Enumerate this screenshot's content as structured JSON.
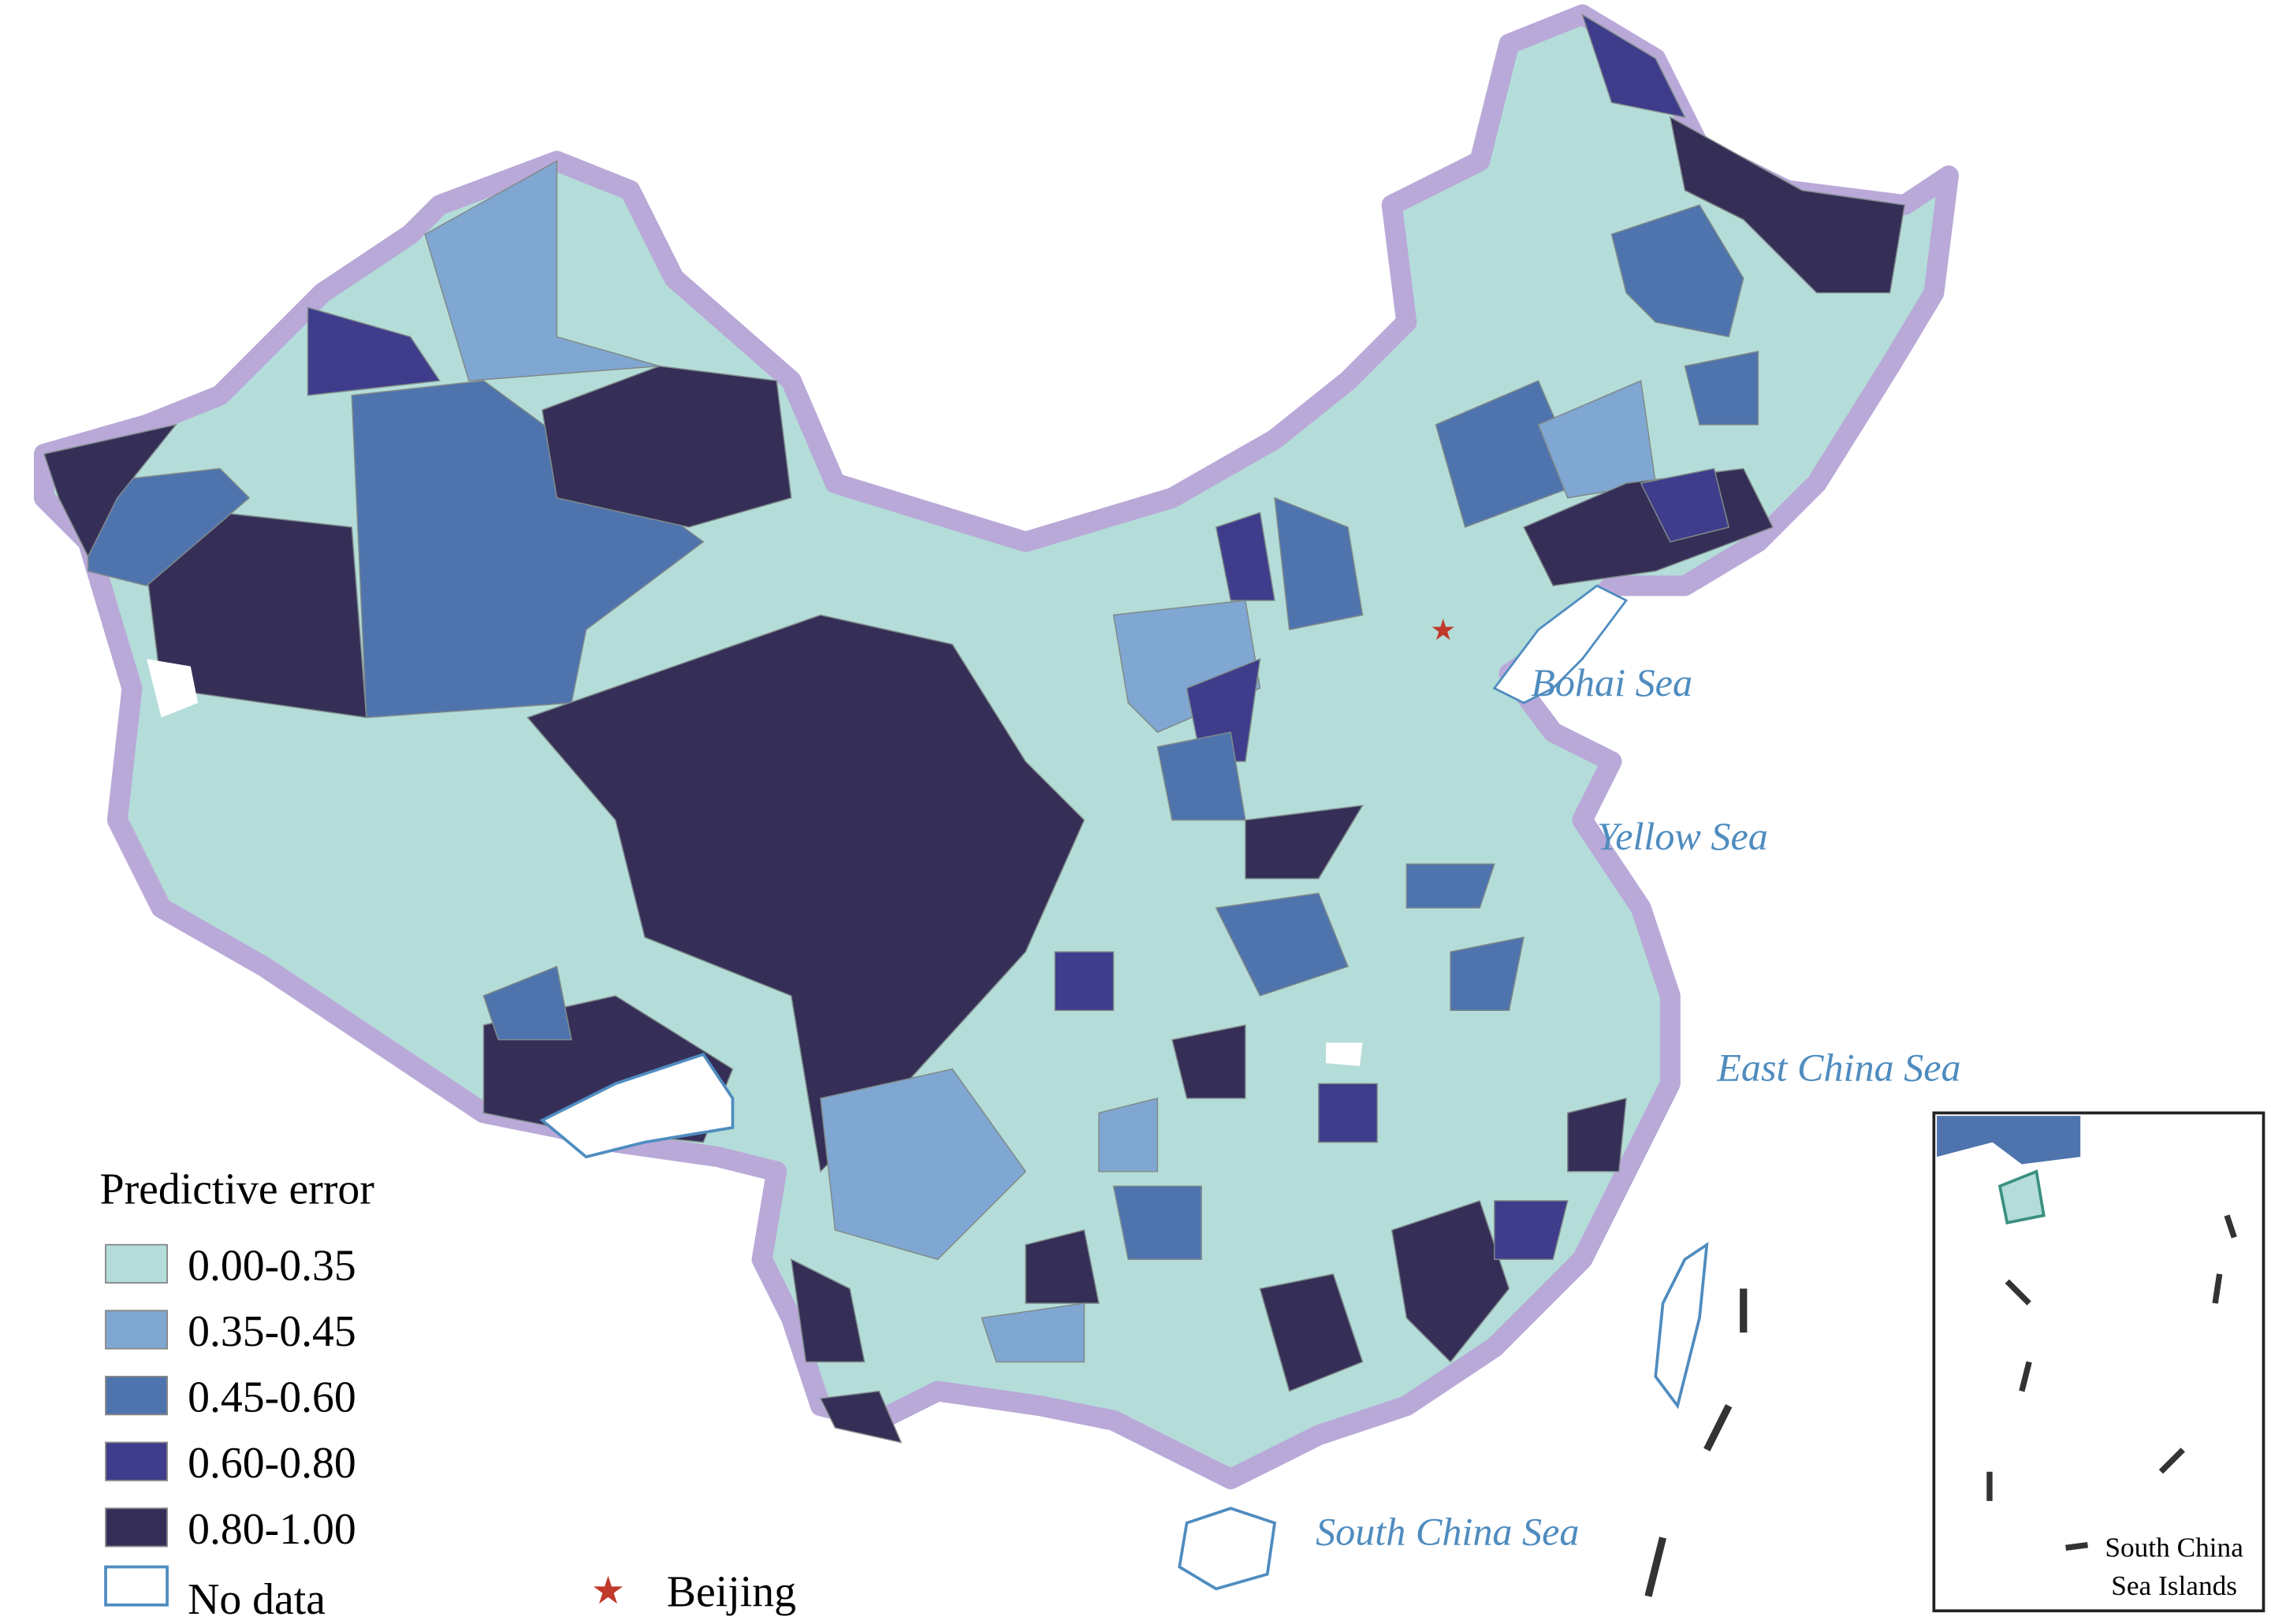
{
  "legend": {
    "title": "Predictive error",
    "items": [
      {
        "label": "0.00-0.35",
        "color": "#b4ddd9"
      },
      {
        "label": "0.35-0.45",
        "color": "#80a7d1"
      },
      {
        "label": "0.45-0.60",
        "color": "#4f74ad"
      },
      {
        "label": "0.60-0.80",
        "color": "#3e3c8b"
      },
      {
        "label": "0.80-1.00",
        "color": "#352f58"
      }
    ],
    "no_data": "No data"
  },
  "marker": {
    "label": "Beijing"
  },
  "seas": [
    "Bohai Sea",
    "Yellow Sea",
    "East China Sea",
    "South China Sea"
  ],
  "inset": {
    "label_lines": [
      "South China",
      "Sea Islands"
    ]
  }
}
